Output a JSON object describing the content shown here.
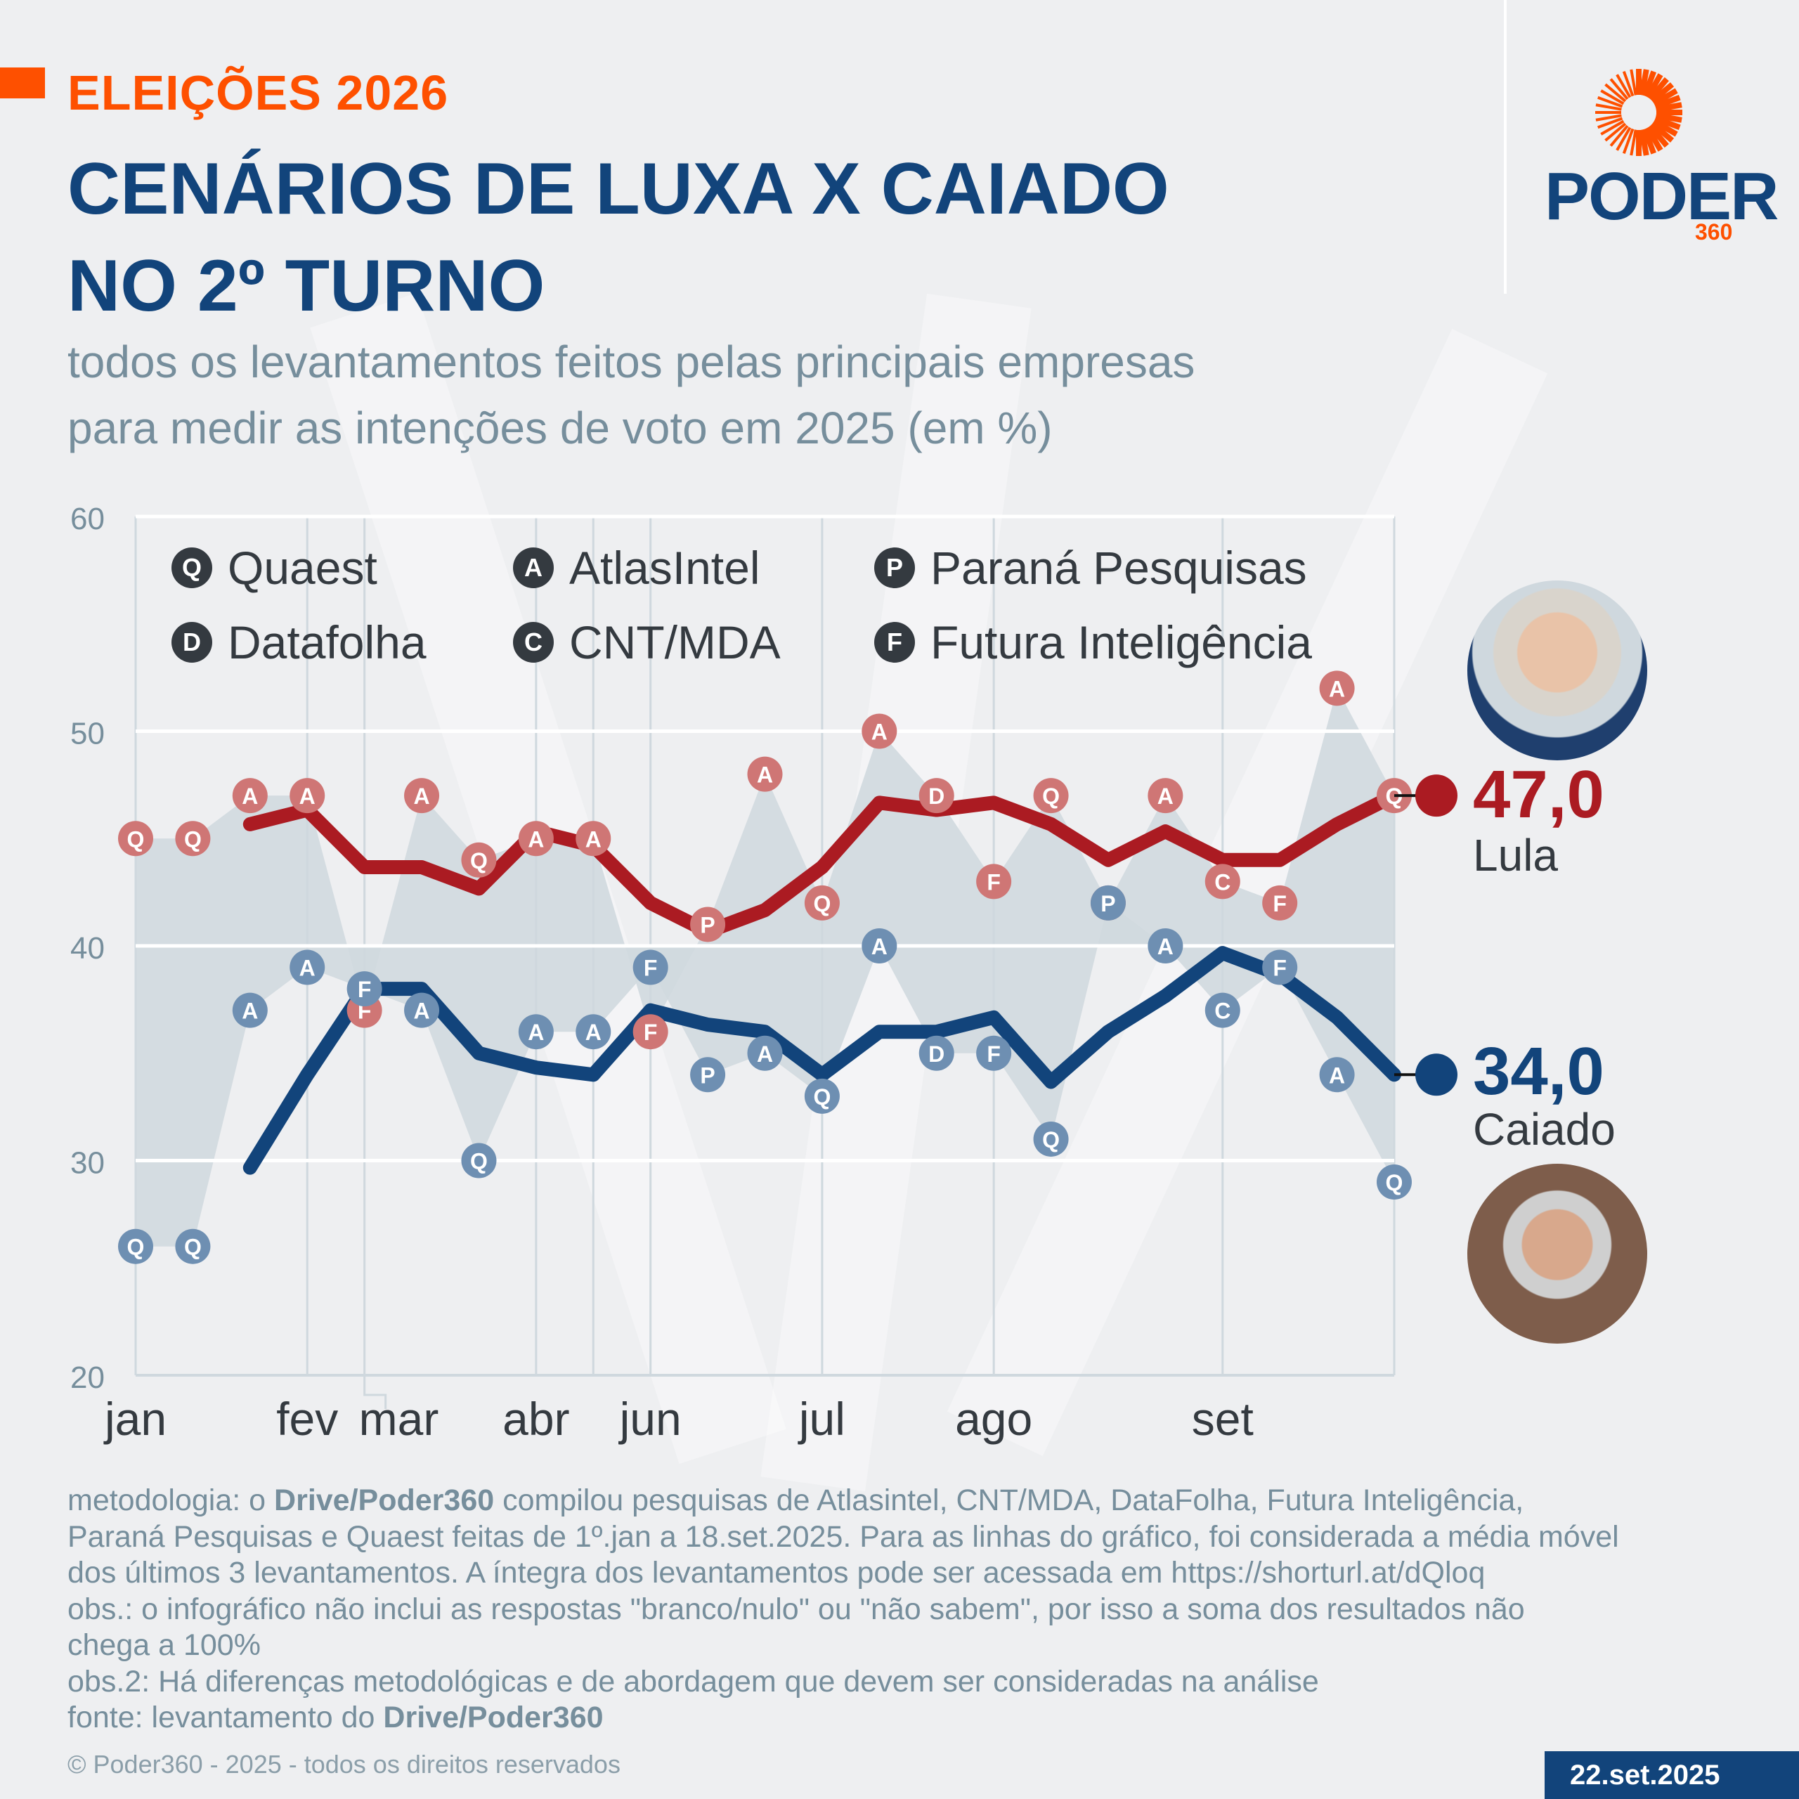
{
  "header": {
    "kicker": "ELEIÇÕES 2026",
    "title_line1": "CENÁRIOS DE LUXA X CAIADO",
    "title_line2": "NO 2º TURNO",
    "subtitle_line1": "todos os levantamentos feitos pelas principais empresas",
    "subtitle_line2": "para medir as intenções de voto em 2025 (em %)"
  },
  "logo": {
    "word": "PODER",
    "suffix": "360"
  },
  "colors": {
    "accent": "#fe5000",
    "navy": "#12447b",
    "lula": "#ab1b22",
    "lula_marker": "#cf7675",
    "caiado": "#12447b",
    "caiado_marker": "#6e8fb2",
    "band": "#d0d9df"
  },
  "legend": [
    {
      "code": "Q",
      "label": "Quaest"
    },
    {
      "code": "A",
      "label": "AtlasIntel"
    },
    {
      "code": "P",
      "label": "Paraná Pesquisas"
    },
    {
      "code": "D",
      "label": "Datafolha"
    },
    {
      "code": "C",
      "label": "CNT/MDA"
    },
    {
      "code": "F",
      "label": "Futura Inteligência"
    }
  ],
  "candidates": {
    "lula": {
      "name": "Lula",
      "value_label": "47,0",
      "photo": "lula-photo"
    },
    "caiado": {
      "name": "Caiado",
      "value_label": "34,0",
      "photo": "caiado-photo"
    }
  },
  "chart_data": {
    "type": "line",
    "title": "CENÁRIOS DE LUXA X CAIADO NO 2º TURNO",
    "ylabel": "%",
    "ylim": [
      20,
      60
    ],
    "yticks": [
      20,
      30,
      40,
      50,
      60
    ],
    "grid": true,
    "legend_position": "top-left",
    "month_labels": [
      {
        "label": "jan",
        "index": 0
      },
      {
        "label": "fev",
        "index": 3
      },
      {
        "label": "mar",
        "index": 4.6
      },
      {
        "label": "abr",
        "index": 7
      },
      {
        "label": "jun",
        "index": 9
      },
      {
        "label": "jul",
        "index": 12
      },
      {
        "label": "ago",
        "index": 15
      },
      {
        "label": "set",
        "index": 19
      }
    ],
    "month_gridlines": [
      0,
      3,
      4,
      7,
      8,
      9,
      12,
      15,
      19,
      22
    ],
    "pollsters": [
      "Q",
      "Q",
      "A",
      "A",
      "F",
      "A",
      "Q",
      "A",
      "A",
      "F",
      "P",
      "A",
      "Q",
      "A",
      "D",
      "F",
      "Q",
      "P",
      "A",
      "C",
      "F",
      "A",
      "Q"
    ],
    "series": [
      {
        "name": "Lula",
        "values": [
          45,
          45,
          47,
          47,
          37,
          47,
          44,
          45,
          45,
          36,
          41,
          48,
          42,
          50,
          47,
          43,
          47,
          42,
          47,
          43,
          42,
          52,
          47
        ],
        "moving_average_window": 3,
        "final_value": 47.0
      },
      {
        "name": "Caiado",
        "values": [
          26,
          26,
          37,
          39,
          38,
          37,
          30,
          36,
          36,
          39,
          34,
          35,
          33,
          40,
          35,
          35,
          31,
          42,
          40,
          37,
          39,
          34,
          29
        ],
        "moving_average_window": 3,
        "final_value": 34.0
      }
    ]
  },
  "notes": {
    "line1_pre": "metodologia: o ",
    "line1_bold": "Drive/Poder360",
    "line1_post": " compilou pesquisas de Atlasintel, CNT/MDA, DataFolha, Futura Inteligência,",
    "line2": "Paraná Pesquisas e Quaest feitas de 1º.jan a 18.set.2025. Para as linhas do gráfico, foi considerada a média móvel",
    "line3": "dos últimos 3 levantamentos. A íntegra dos levantamentos pode ser acessada em https://shorturl.at/dQloq",
    "line4": "obs.: o infográfico não inclui as respostas \"branco/nulo\" ou \"não sabem\", por isso a soma dos resultados não",
    "line5": "chega a 100%",
    "line6": "obs.2: Há diferenças metodológicas e de abordagem que devem ser consideradas na análise",
    "line7_pre": "fonte: levantamento do ",
    "line7_bold": "Drive/Poder360"
  },
  "footer": {
    "copyright": "© Poder360 - 2025 - todos os direitos reservados",
    "date": "22.set.2025"
  }
}
